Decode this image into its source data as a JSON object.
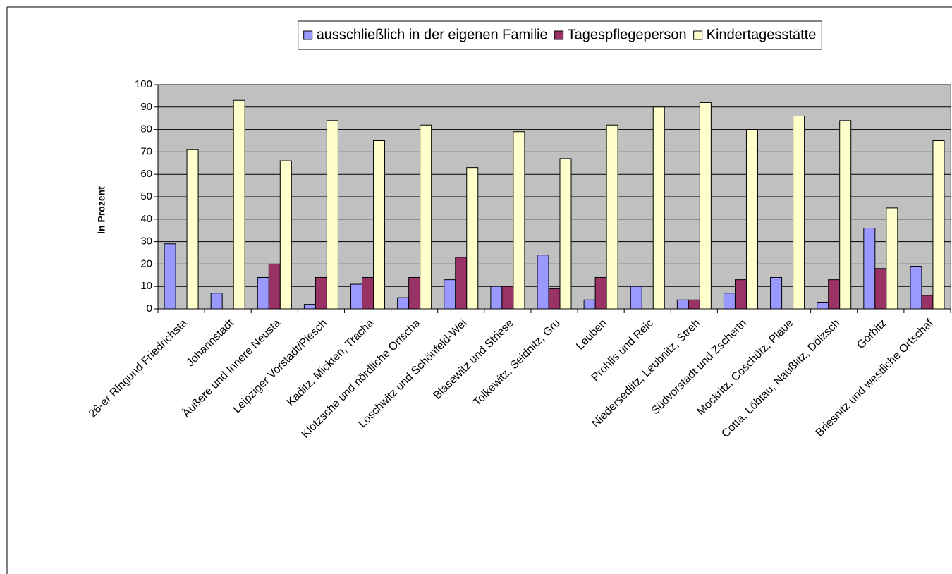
{
  "chart_data": {
    "type": "bar",
    "y_label": "in Prozent",
    "categories": [
      "26-er Ringund Friedrichsta",
      "Johannstadt",
      "Äußere und Innere Neusta",
      "Leipziger Vorstadt/Piesch",
      "Kaditz, Mickten, Tracha",
      "Klotzsche und nördliche Ortscha",
      "Loschwitz und Schönfeld-Wei",
      "Blasewitz und Striese",
      "Tolkewitz, Seidnitz, Gru",
      "Leuben",
      "Prohlis und Reic",
      "Niedersedlitz, Leubnitz, Streh",
      "Südvorstadt und Zschertn",
      "Mockritz, Coschütz, Plaue",
      "Cotta, Löbtau, Naußlitz, Dölzsch",
      "Gorbitz",
      "Briesnitz und westliche Ortschaf"
    ],
    "series": [
      {
        "name": "ausschließlich in der eigenen Familie",
        "color": "#9999ff",
        "values": [
          29,
          7,
          14,
          2,
          11,
          5,
          13,
          10,
          24,
          4,
          10,
          4,
          7,
          14,
          3,
          36,
          19
        ]
      },
      {
        "name": "Tagespflegeperson",
        "color": "#993366",
        "values": [
          0,
          0,
          20,
          14,
          14,
          14,
          23,
          10,
          9,
          14,
          0,
          4,
          13,
          0,
          13,
          18,
          6
        ]
      },
      {
        "name": "Kindertagesstätte",
        "color": "#ffffcc",
        "values": [
          71,
          93,
          66,
          84,
          75,
          82,
          63,
          79,
          67,
          82,
          90,
          92,
          80,
          86,
          84,
          45,
          75
        ]
      }
    ],
    "ylim": [
      0,
      100
    ],
    "yticks": [
      0,
      10,
      20,
      30,
      40,
      50,
      60,
      70,
      80,
      90,
      100
    ],
    "grid": true,
    "legend": "top",
    "plot_background": "#c0c0c0"
  }
}
